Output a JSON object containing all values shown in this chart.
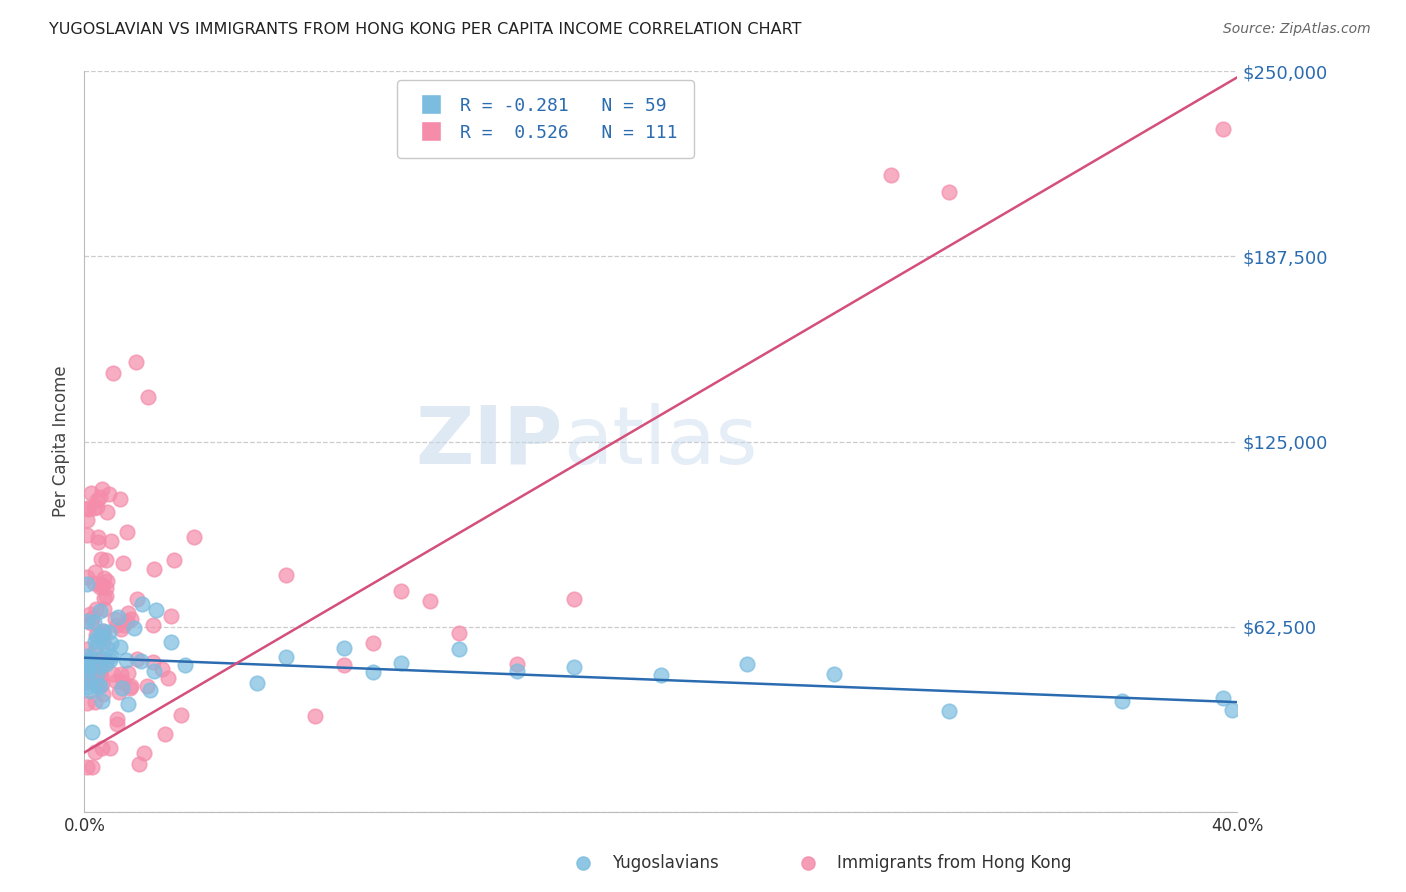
{
  "title": "YUGOSLAVIAN VS IMMIGRANTS FROM HONG KONG PER CAPITA INCOME CORRELATION CHART",
  "source": "Source: ZipAtlas.com",
  "ylabel": "Per Capita Income",
  "xlim": [
    0.0,
    0.4
  ],
  "ylim": [
    0,
    250000
  ],
  "yticks": [
    0,
    62500,
    125000,
    187500,
    250000
  ],
  "ytick_labels": [
    "",
    "$62,500",
    "$125,000",
    "$187,500",
    "$250,000"
  ],
  "xtick_labels": [
    "0.0%",
    "",
    "",
    "",
    "",
    "",
    "",
    "",
    "40.0%"
  ],
  "blue_R": -0.281,
  "blue_N": 59,
  "pink_R": 0.526,
  "pink_N": 111,
  "blue_color": "#7bbcdf",
  "pink_color": "#f48caa",
  "blue_line_color": "#2b6cb0",
  "pink_line_color": "#d44f7a",
  "watermark_zip": "ZIP",
  "watermark_atlas": "atlas",
  "legend_label_blue": "Yugoslavians",
  "legend_label_pink": "Immigrants from Hong Kong",
  "blue_line_y0": 52000,
  "blue_line_y1": 37000,
  "pink_line_y0": 20000,
  "pink_line_y1": 248000
}
